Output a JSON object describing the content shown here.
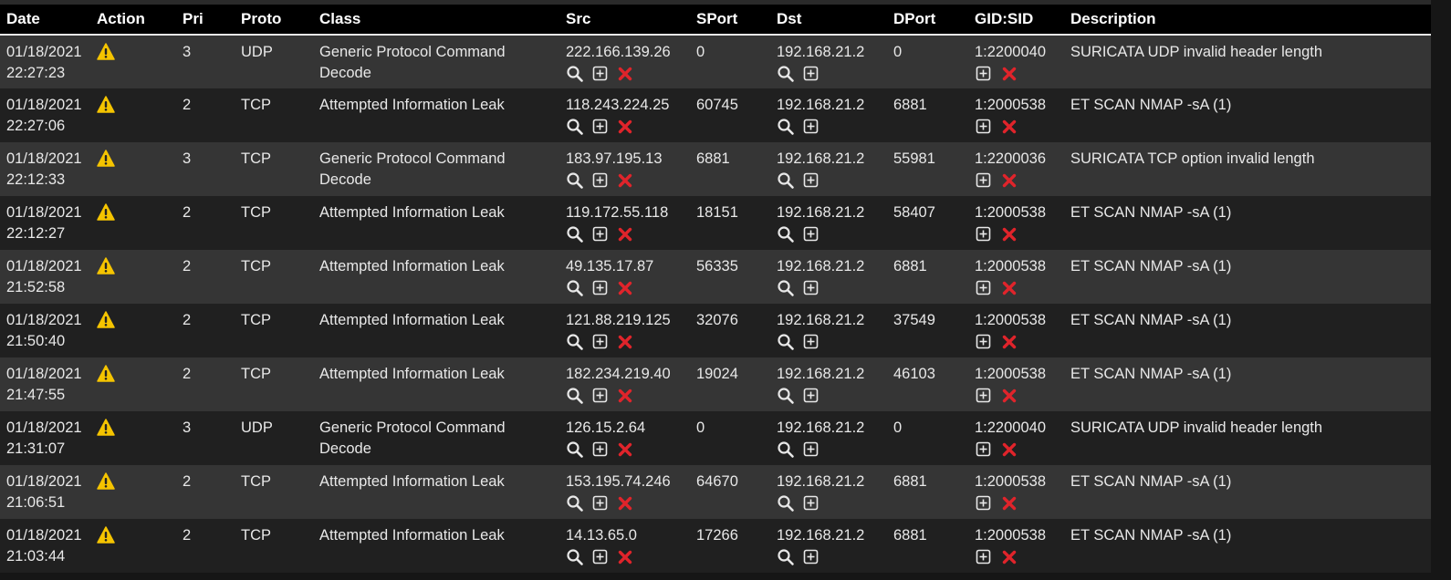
{
  "columns": [
    "Date",
    "Action",
    "Pri",
    "Proto",
    "Class",
    "Src",
    "SPort",
    "Dst",
    "DPort",
    "GID:SID",
    "Description"
  ],
  "icons": {
    "action": "warning-icon",
    "lookup": "search-icon",
    "add": "add-box-icon",
    "remove": "remove-x-icon"
  },
  "colors": {
    "warning": "#f5c400",
    "remove": "#e0242b"
  },
  "rows": [
    {
      "date": "01/18/2021",
      "time": "22:27:23",
      "pri": "3",
      "proto": "UDP",
      "class_l1": "Generic Protocol Command",
      "class_l2": "Decode",
      "src": "222.166.139.26",
      "sport": "0",
      "dst": "192.168.21.2",
      "dport": "0",
      "gidsid": "1:2200040",
      "desc": "SURICATA UDP invalid header length"
    },
    {
      "date": "01/18/2021",
      "time": "22:27:06",
      "pri": "2",
      "proto": "TCP",
      "class_l1": "Attempted Information Leak",
      "class_l2": "",
      "src": "118.243.224.25",
      "sport": "60745",
      "dst": "192.168.21.2",
      "dport": "6881",
      "gidsid": "1:2000538",
      "desc": "ET SCAN NMAP -sA (1)"
    },
    {
      "date": "01/18/2021",
      "time": "22:12:33",
      "pri": "3",
      "proto": "TCP",
      "class_l1": "Generic Protocol Command",
      "class_l2": "Decode",
      "src": "183.97.195.13",
      "sport": "6881",
      "dst": "192.168.21.2",
      "dport": "55981",
      "gidsid": "1:2200036",
      "desc": "SURICATA TCP option invalid length"
    },
    {
      "date": "01/18/2021",
      "time": "22:12:27",
      "pri": "2",
      "proto": "TCP",
      "class_l1": "Attempted Information Leak",
      "class_l2": "",
      "src": "119.172.55.118",
      "sport": "18151",
      "dst": "192.168.21.2",
      "dport": "58407",
      "gidsid": "1:2000538",
      "desc": "ET SCAN NMAP -sA (1)"
    },
    {
      "date": "01/18/2021",
      "time": "21:52:58",
      "pri": "2",
      "proto": "TCP",
      "class_l1": "Attempted Information Leak",
      "class_l2": "",
      "src": "49.135.17.87",
      "sport": "56335",
      "dst": "192.168.21.2",
      "dport": "6881",
      "gidsid": "1:2000538",
      "desc": "ET SCAN NMAP -sA (1)"
    },
    {
      "date": "01/18/2021",
      "time": "21:50:40",
      "pri": "2",
      "proto": "TCP",
      "class_l1": "Attempted Information Leak",
      "class_l2": "",
      "src": "121.88.219.125",
      "sport": "32076",
      "dst": "192.168.21.2",
      "dport": "37549",
      "gidsid": "1:2000538",
      "desc": "ET SCAN NMAP -sA (1)"
    },
    {
      "date": "01/18/2021",
      "time": "21:47:55",
      "pri": "2",
      "proto": "TCP",
      "class_l1": "Attempted Information Leak",
      "class_l2": "",
      "src": "182.234.219.40",
      "sport": "19024",
      "dst": "192.168.21.2",
      "dport": "46103",
      "gidsid": "1:2000538",
      "desc": "ET SCAN NMAP -sA (1)"
    },
    {
      "date": "01/18/2021",
      "time": "21:31:07",
      "pri": "3",
      "proto": "UDP",
      "class_l1": "Generic Protocol Command",
      "class_l2": "Decode",
      "src": "126.15.2.64",
      "sport": "0",
      "dst": "192.168.21.2",
      "dport": "0",
      "gidsid": "1:2200040",
      "desc": "SURICATA UDP invalid header length"
    },
    {
      "date": "01/18/2021",
      "time": "21:06:51",
      "pri": "2",
      "proto": "TCP",
      "class_l1": "Attempted Information Leak",
      "class_l2": "",
      "src": "153.195.74.246",
      "sport": "64670",
      "dst": "192.168.21.2",
      "dport": "6881",
      "gidsid": "1:2000538",
      "desc": "ET SCAN NMAP -sA (1)"
    },
    {
      "date": "01/18/2021",
      "time": "21:03:44",
      "pri": "2",
      "proto": "TCP",
      "class_l1": "Attempted Information Leak",
      "class_l2": "",
      "src": "14.13.65.0",
      "sport": "17266",
      "dst": "192.168.21.2",
      "dport": "6881",
      "gidsid": "1:2000538",
      "desc": "ET SCAN NMAP -sA (1)"
    }
  ]
}
